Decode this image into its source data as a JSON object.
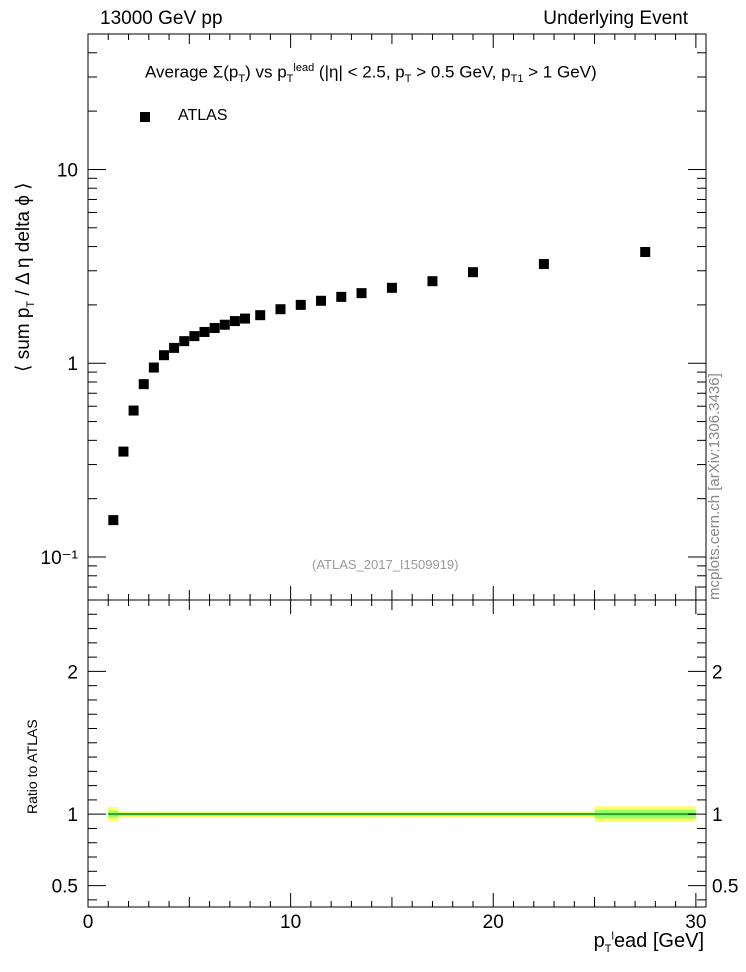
{
  "header": {
    "left": "13000 GeV pp",
    "right": "Underlying Event"
  },
  "title": {
    "prefix": "Average ",
    "text": "Σ(p",
    "sub1": "T",
    "mid1": ") vs p",
    "sub2": "T",
    "sup2": "lead",
    "rest": " (|η| < 2.5, p",
    "sub3": "T",
    "rest2": " > 0.5 GeV, p",
    "sub4": "T1",
    "rest3": " > 1 GeV)"
  },
  "ylabel": "⟨ sum p",
  "ylabel_sub": "T",
  "ylabel_rest": " / Δ η delta ϕ ⟩",
  "ratio_ylabel": "Ratio to ATLAS",
  "xlabel": "p",
  "xlabel_sub": "T",
  "xlabel_sup": "l",
  "xlabel_rest": "ead [GeV]",
  "analysis_label": "(ATLAS_2017_I1509919)",
  "watermark": "mcplots.cern.ch [arXiv:1306.3436]",
  "colors": {
    "marker": "#000000",
    "band_outer": "#ffff66",
    "band_inner": "#99ff66",
    "ratio_line": "#2ca02c",
    "analysis": "#999999",
    "watermark": "#888888"
  },
  "chart_data": {
    "type": "scatter",
    "log_y": true,
    "xlim": [
      0,
      30.5
    ],
    "ylim": [
      0.06,
      50
    ],
    "ratio_ylim": [
      0.35,
      2.5
    ],
    "x_ticks": [
      "0",
      "10",
      "20",
      "30"
    ],
    "y_ticks": [
      "10⁻¹",
      "1",
      "10"
    ],
    "ratio_ticks": [
      "0.5",
      "1",
      "2"
    ],
    "legend": "ATLAS",
    "legend_position": "top-left",
    "series": [
      {
        "name": "ATLAS",
        "x": [
          1.25,
          1.75,
          2.25,
          2.75,
          3.25,
          3.75,
          4.25,
          4.75,
          5.25,
          5.75,
          6.25,
          6.75,
          7.25,
          7.75,
          8.5,
          9.5,
          10.5,
          11.5,
          12.5,
          13.5,
          15.0,
          17.0,
          19.0,
          22.5,
          27.5
        ],
        "values": [
          0.155,
          0.35,
          0.57,
          0.78,
          0.95,
          1.1,
          1.2,
          1.3,
          1.38,
          1.45,
          1.52,
          1.58,
          1.65,
          1.7,
          1.77,
          1.9,
          2.0,
          2.1,
          2.2,
          2.3,
          2.45,
          2.65,
          2.95,
          3.25,
          3.75
        ],
        "ratio": [
          1,
          1,
          1,
          1,
          1,
          1,
          1,
          1,
          1,
          1,
          1,
          1,
          1,
          1,
          1,
          1,
          1,
          1,
          1,
          1,
          1,
          1,
          1,
          1,
          1
        ]
      }
    ]
  }
}
